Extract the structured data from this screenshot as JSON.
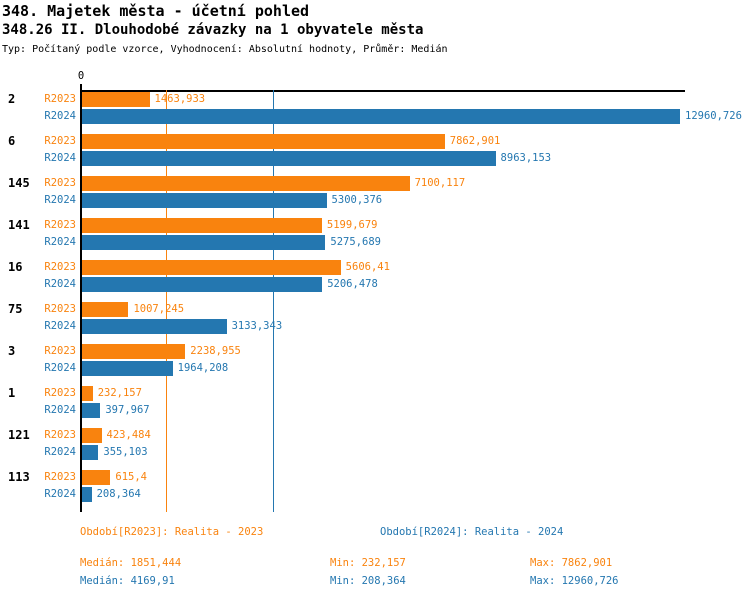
{
  "header": {
    "title1": "348. Majetek města - účetní pohled",
    "title2": "348.26 II. Dlouhodobé závazky na 1 obyvatele města",
    "subtitle": "Typ: Počítaný podle vzorce, Vyhodnocení: Absolutní hodnoty, Průměr: Medián"
  },
  "colors": {
    "r2023": "#F9830E",
    "r2024": "#2477B0",
    "axis": "#000000"
  },
  "chart_data": {
    "type": "bar",
    "orientation": "horizontal",
    "title": "348.26 II. Dlouhodobé závazky na 1 obyvatele města",
    "categories": [
      "2",
      "6",
      "145",
      "141",
      "16",
      "75",
      "3",
      "1",
      "121",
      "113"
    ],
    "series": [
      {
        "name": "R2023",
        "label": "Realita - 2023",
        "color": "#F9830E",
        "values": [
          1463.933,
          7862.901,
          7100.117,
          5199.679,
          5606.41,
          1007.245,
          2238.955,
          232.157,
          423.484,
          615.4
        ],
        "value_labels": [
          "1463,933",
          "7862,901",
          "7100,117",
          "5199,679",
          "5606,41",
          "1007,245",
          "2238,955",
          "232,157",
          "423,484",
          "615,4"
        ],
        "median": 1851.444,
        "min": 232.157,
        "max": 7862.901
      },
      {
        "name": "R2024",
        "label": "Realita - 2024",
        "color": "#2477B0",
        "values": [
          12960.726,
          8963.153,
          5300.376,
          5275.689,
          5206.478,
          3133.343,
          1964.208,
          397.967,
          355.103,
          208.364
        ],
        "value_labels": [
          "12960,726",
          "8963,153",
          "5300,376",
          "5275,689",
          "5206,478",
          "3133,343",
          "1964,208",
          "397,967",
          "355,103",
          "208,364"
        ],
        "median": 4169.91,
        "min": 208.364,
        "max": 12960.726
      }
    ],
    "x_axis": {
      "zero_label": "0",
      "min": 0,
      "max": 12960.726
    },
    "median_lines": [
      {
        "series": "R2023",
        "value": 1851.444
      },
      {
        "series": "R2024",
        "value": 4169.91
      }
    ],
    "grid": false,
    "legend_position": "bottom"
  },
  "legend": {
    "r2023": "Období[R2023]: Realita - 2023",
    "r2024": "Období[R2024]: Realita - 2024"
  },
  "stats": {
    "r2023": {
      "median": "Medián: 1851,444",
      "min": "Min: 232,157",
      "max": "Max: 7862,901"
    },
    "r2024": {
      "median": "Medián: 4169,91",
      "min": "Min: 208,364",
      "max": "Max: 12960,726"
    }
  }
}
